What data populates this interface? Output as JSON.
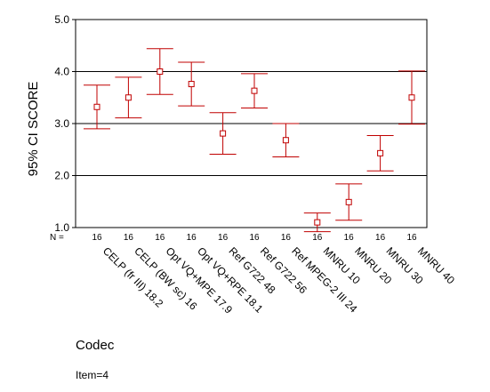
{
  "chart_data": {
    "type": "error-bar",
    "xlabel": "Codec",
    "ylabel": "95% CI SCORE",
    "ylim": [
      1.0,
      5.0
    ],
    "y_ticks": [
      "1.0",
      "2.0",
      "3.0",
      "4.0",
      "5.0"
    ],
    "reference_lines": [
      2.0,
      3.0,
      4.0
    ],
    "n_label": "N =",
    "note": "Item=4",
    "series_color": "#c00000",
    "categories": [
      "CELP (fr III) 18.2",
      "CELP (BW sc) 16",
      "Opt VQ+MPE 17.9",
      "Opt VQ+RPE 18.1",
      "Ref G722 48",
      "Ref G722 56",
      "Ref MPEG-2 III 24",
      "MNRU 10",
      "MNRU 20",
      "MNRU 30",
      "MNRU 40"
    ],
    "n": [
      "16",
      "16",
      "16",
      "16",
      "16",
      "16",
      "16",
      "16",
      "16",
      "16",
      "16"
    ],
    "mean": [
      3.32,
      3.5,
      4.0,
      3.76,
      2.81,
      3.63,
      2.68,
      1.1,
      1.49,
      2.43,
      3.5
    ],
    "lower": [
      2.9,
      3.11,
      3.56,
      3.34,
      2.41,
      3.3,
      2.36,
      0.92,
      1.14,
      2.09,
      2.99
    ],
    "upper": [
      3.74,
      3.89,
      4.44,
      4.18,
      3.21,
      3.96,
      3.0,
      1.28,
      1.84,
      2.77,
      4.01
    ]
  }
}
